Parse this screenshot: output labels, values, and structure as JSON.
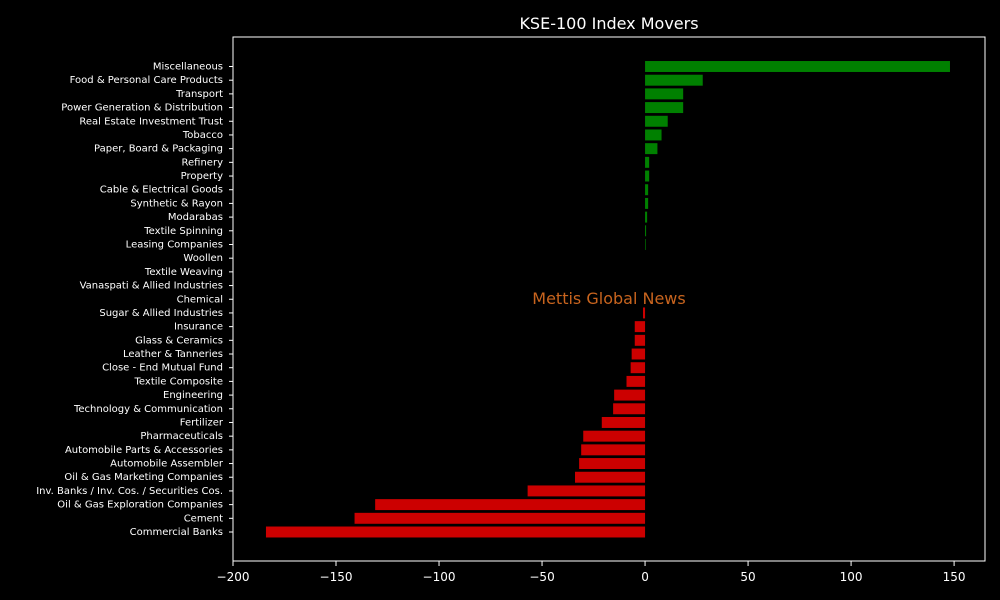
{
  "chart_data": {
    "type": "bar",
    "orientation": "horizontal",
    "title": "KSE-100 Index Movers",
    "watermark": "Mettis Global News",
    "xlabel": "",
    "ylabel": "",
    "xlim": [
      -200,
      165
    ],
    "xticks": [
      -200,
      -150,
      -100,
      -50,
      0,
      50,
      100,
      150
    ],
    "xtick_labels": [
      "−200",
      "−150",
      "−100",
      "−50",
      "0",
      "50",
      "100",
      "150"
    ],
    "grid": false,
    "colors": {
      "positive": "#008000",
      "negative": "#cc0000",
      "background": "#000000",
      "text": "#ffffff",
      "watermark": "#c8641e"
    },
    "categories": [
      "Miscellaneous",
      "Food & Personal Care Products",
      "Transport",
      "Power Generation & Distribution",
      "Real Estate Investment Trust",
      "Tobacco",
      "Paper, Board & Packaging",
      "Refinery",
      "Property",
      "Cable & Electrical Goods",
      "Synthetic & Rayon",
      "Modarabas",
      "Textile Spinning",
      "Leasing Companies",
      "Woollen",
      "Textile Weaving",
      "Vanaspati & Allied Industries",
      "Chemical",
      "Sugar & Allied Industries",
      "Insurance",
      "Glass & Ceramics",
      "Leather & Tanneries",
      "Close - End Mutual Fund",
      "Textile Composite",
      "Engineering",
      "Technology & Communication",
      "Fertilizer",
      "Pharmaceuticals",
      "Automobile Parts & Accessories",
      "Automobile Assembler",
      "Oil & Gas Marketing Companies",
      "Inv. Banks / Inv. Cos. / Securities Cos.",
      "Oil & Gas Exploration Companies",
      "Cement",
      "Commercial Banks"
    ],
    "values": [
      148,
      28,
      18.5,
      18.5,
      11,
      8,
      6,
      2,
      2,
      1.5,
      1.5,
      1,
      0.5,
      0.3,
      0,
      0,
      0,
      0,
      -1,
      -5,
      -5,
      -6.5,
      -7,
      -9,
      -15,
      -15.5,
      -21,
      -30,
      -31,
      -32,
      -34,
      -57,
      -131,
      -141,
      -184
    ]
  }
}
